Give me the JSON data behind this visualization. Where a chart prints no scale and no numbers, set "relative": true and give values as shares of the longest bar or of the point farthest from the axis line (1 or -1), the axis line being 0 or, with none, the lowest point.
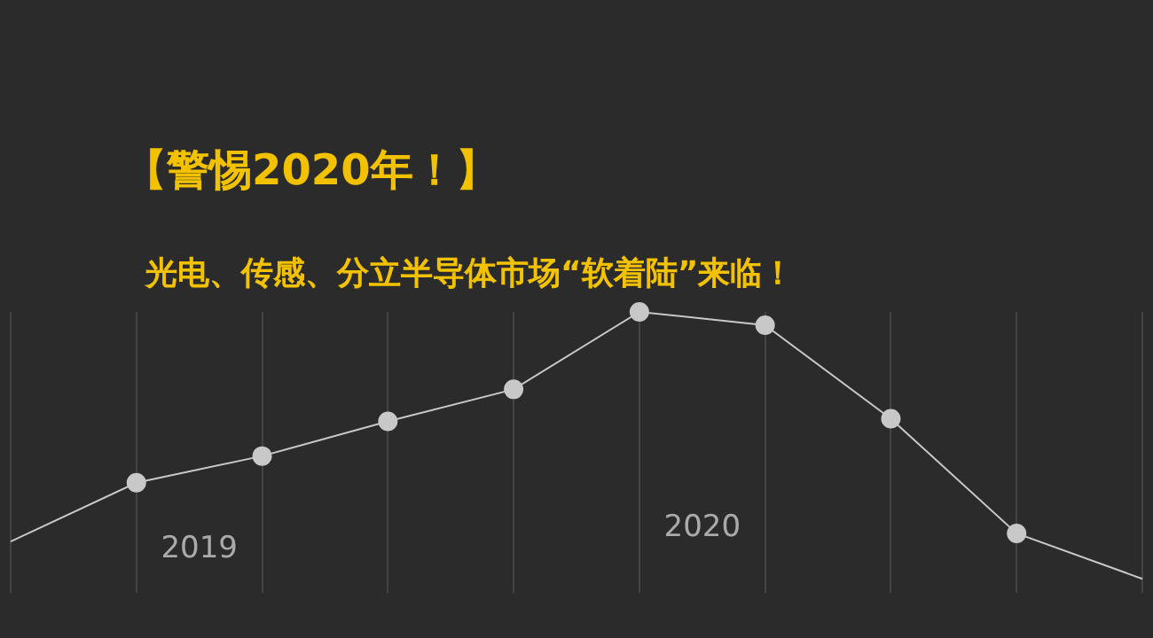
{
  "chart_data": {
    "type": "line",
    "title": "【警惕2020年！】",
    "subtitle": "光电、传感、分立半导体市场“软着陆”来临！",
    "categories": [
      null,
      null,
      null,
      null,
      null,
      null,
      null,
      null,
      null,
      null
    ],
    "series": [
      {
        "color": "#c8c8c8",
        "values": [
          0.14,
          0.36,
          0.46,
          0.59,
          0.71,
          1,
          0.95,
          0.6,
          0.17,
          0
        ]
      }
    ],
    "relative": true,
    "marker": "circle",
    "grid": true,
    "legend": false,
    "annotations": [
      "2019",
      "2020"
    ]
  }
}
